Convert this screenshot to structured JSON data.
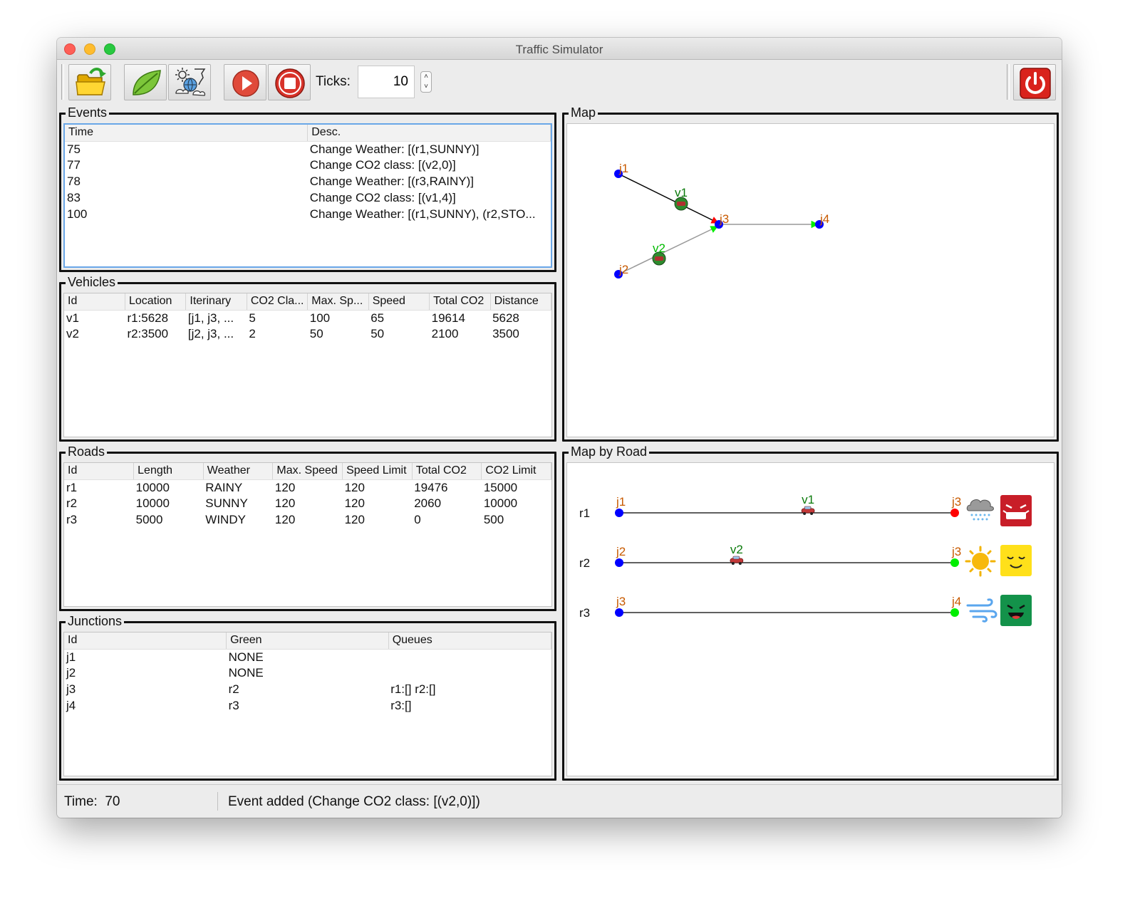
{
  "window": {
    "title": "Traffic Simulator"
  },
  "toolbar": {
    "ticks_label": "Ticks:",
    "ticks_value": "10",
    "icons": [
      "folder-open-icon",
      "leaf-icon",
      "weather-icon",
      "play-icon",
      "stop-icon",
      "power-icon"
    ]
  },
  "events": {
    "title": "Events",
    "columns": [
      "Time",
      "Desc."
    ],
    "rows": [
      [
        "75",
        "Change Weather: [(r1,SUNNY)]"
      ],
      [
        "77",
        "Change CO2 class: [(v2,0)]"
      ],
      [
        "78",
        "Change Weather: [(r3,RAINY)]"
      ],
      [
        "83",
        "Change CO2 class: [(v1,4)]"
      ],
      [
        "100",
        "Change Weather: [(r1,SUNNY), (r2,STO..."
      ]
    ]
  },
  "vehicles": {
    "title": "Vehicles",
    "columns": [
      "Id",
      "Location",
      "Iterinary",
      "CO2 Cla...",
      "Max. Sp...",
      "Speed",
      "Total CO2",
      "Distance"
    ],
    "rows": [
      [
        "v1",
        "r1:5628",
        "[j1, j3, ...",
        "5",
        "100",
        "65",
        "19614",
        "5628"
      ],
      [
        "v2",
        "r2:3500",
        "[j2, j3, ...",
        "2",
        "50",
        "50",
        "2100",
        "3500"
      ]
    ]
  },
  "roads": {
    "title": "Roads",
    "columns": [
      "Id",
      "Length",
      "Weather",
      "Max. Speed",
      "Speed Limit",
      "Total CO2",
      "CO2 Limit"
    ],
    "rows": [
      [
        "r1",
        "10000",
        "RAINY",
        "120",
        "120",
        "19476",
        "15000"
      ],
      [
        "r2",
        "10000",
        "SUNNY",
        "120",
        "120",
        "2060",
        "10000"
      ],
      [
        "r3",
        "5000",
        "WINDY",
        "120",
        "120",
        "0",
        "500"
      ]
    ]
  },
  "junctions": {
    "title": "Junctions",
    "columns": [
      "Id",
      "Green",
      "Queues"
    ],
    "rows": [
      [
        "j1",
        "NONE",
        ""
      ],
      [
        "j2",
        "NONE",
        ""
      ],
      [
        "j3",
        "r2",
        "r1:[] r2:[]"
      ],
      [
        "j4",
        "r3",
        "r3:[]"
      ]
    ]
  },
  "map": {
    "title": "Map",
    "junctions": {
      "j1": "j1",
      "j2": "j2",
      "j3": "j3",
      "j4": "j4"
    },
    "vehicles": {
      "v1": "v1",
      "v2": "v2"
    }
  },
  "map_by_road": {
    "title": "Map by Road",
    "rows": [
      {
        "road": "r1",
        "src": "j1",
        "dest": "j3",
        "vehicle": "v1",
        "progress": 0.5628,
        "dest_green": false,
        "weather_icon": "rain-cloud-icon",
        "co2_icon": "face-level-5-icon"
      },
      {
        "road": "r2",
        "src": "j2",
        "dest": "j3",
        "vehicle": "v2",
        "progress": 0.35,
        "dest_green": true,
        "weather_icon": "sun-icon",
        "co2_icon": "face-level-1-icon"
      },
      {
        "road": "r3",
        "src": "j3",
        "dest": "j4",
        "vehicle": "",
        "progress": 0,
        "dest_green": true,
        "weather_icon": "wind-icon",
        "co2_icon": "face-level-0-icon"
      }
    ]
  },
  "status": {
    "time_label": "Time:",
    "time_value": "70",
    "message": "Event added (Change CO2 class: [(v2,0)])"
  },
  "colors": {
    "junction": "#0000ff",
    "red_light": "#ff0000",
    "green_light": "#00ee00",
    "junction_label": "#c85a00",
    "vehicle_label": "#0a7a0a",
    "selection_border": "#6aa7e8"
  }
}
